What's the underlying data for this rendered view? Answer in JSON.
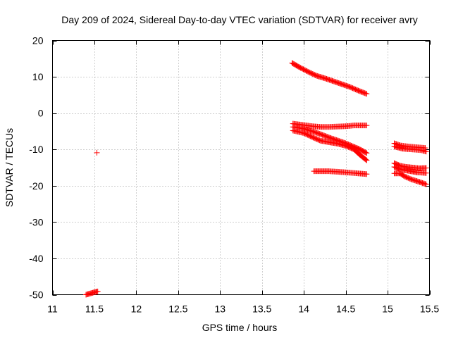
{
  "chart_data": {
    "type": "scatter",
    "title": "Day 209 of 2024, Sidereal Day-to-day VTEC variation (SDTVAR) for receiver avry",
    "xlabel": "GPS time / hours",
    "ylabel": "SDTVAR / TECUs",
    "xlim": [
      11,
      15.5
    ],
    "ylim": [
      -50,
      20
    ],
    "x_ticks": [
      11,
      11.5,
      12,
      12.5,
      13,
      13.5,
      14,
      14.5,
      15,
      15.5
    ],
    "x_tick_labels": [
      "11",
      "11.5",
      "12",
      "12.5",
      "13",
      "13.5",
      "14",
      "14.5",
      "15",
      "15.5"
    ],
    "y_ticks": [
      -50,
      -40,
      -30,
      -20,
      -10,
      0,
      10,
      20
    ],
    "y_tick_labels": [
      "-50",
      "-40",
      "-30",
      "-20",
      "-10",
      "0",
      "10",
      "20"
    ],
    "grid": true,
    "marker": "plus",
    "series": [
      {
        "color": "#ff0000",
        "segments": [
          [
            [
              11.4,
              -50.0
            ],
            [
              11.43,
              -49.8
            ],
            [
              11.46,
              -49.6
            ],
            [
              11.49,
              -49.4
            ],
            [
              11.52,
              -49.2
            ],
            [
              11.54,
              -49.1
            ]
          ],
          [
            [
              11.53,
              -10.9
            ]
          ],
          [
            [
              13.86,
              13.8
            ],
            [
              13.95,
              12.6
            ],
            [
              14.05,
              11.4
            ],
            [
              14.15,
              10.3
            ],
            [
              14.25,
              9.6
            ],
            [
              14.35,
              8.8
            ],
            [
              14.45,
              8.0
            ],
            [
              14.55,
              7.2
            ],
            [
              14.65,
              6.2
            ],
            [
              14.75,
              5.3
            ]
          ],
          [
            [
              13.87,
              -2.9
            ],
            [
              14.0,
              -3.3
            ],
            [
              14.1,
              -3.6
            ],
            [
              14.2,
              -3.8
            ],
            [
              14.3,
              -3.8
            ],
            [
              14.4,
              -3.7
            ],
            [
              14.5,
              -3.6
            ],
            [
              14.6,
              -3.4
            ],
            [
              14.75,
              -3.4
            ]
          ],
          [
            [
              13.87,
              -3.8
            ],
            [
              14.0,
              -4.3
            ],
            [
              14.1,
              -5.0
            ],
            [
              14.2,
              -5.8
            ],
            [
              14.3,
              -6.7
            ],
            [
              14.4,
              -7.5
            ],
            [
              14.5,
              -8.3
            ],
            [
              14.6,
              -9.3
            ],
            [
              14.67,
              -10.0
            ],
            [
              14.75,
              -11.0
            ]
          ],
          [
            [
              13.87,
              -4.8
            ],
            [
              14.0,
              -5.5
            ],
            [
              14.1,
              -6.6
            ],
            [
              14.2,
              -7.6
            ],
            [
              14.3,
              -8.0
            ],
            [
              14.4,
              -8.4
            ],
            [
              14.5,
              -9.0
            ],
            [
              14.6,
              -10.0
            ],
            [
              14.67,
              -11.5
            ],
            [
              14.75,
              -13.0
            ]
          ],
          [
            [
              14.12,
              -16.0
            ],
            [
              14.3,
              -16.0
            ],
            [
              14.5,
              -16.3
            ],
            [
              14.65,
              -16.6
            ],
            [
              14.75,
              -16.8
            ]
          ],
          [
            [
              15.08,
              -8.3
            ],
            [
              15.15,
              -8.9
            ],
            [
              15.25,
              -9.2
            ],
            [
              15.35,
              -9.4
            ],
            [
              15.45,
              -9.6
            ]
          ],
          [
            [
              15.08,
              -9.2
            ],
            [
              15.18,
              -9.8
            ],
            [
              15.3,
              -10.0
            ],
            [
              15.4,
              -10.2
            ],
            [
              15.46,
              -10.6
            ]
          ],
          [
            [
              15.08,
              -13.8
            ],
            [
              15.15,
              -14.5
            ],
            [
              15.22,
              -14.8
            ],
            [
              15.3,
              -15.0
            ],
            [
              15.38,
              -15.2
            ],
            [
              15.46,
              -15.1
            ]
          ],
          [
            [
              15.08,
              -14.8
            ],
            [
              15.15,
              -15.5
            ],
            [
              15.25,
              -15.9
            ],
            [
              15.35,
              -16.3
            ],
            [
              15.46,
              -16.5
            ]
          ],
          [
            [
              15.08,
              -16.6
            ],
            [
              15.15,
              -16.6
            ],
            [
              15.2,
              -17.4
            ],
            [
              15.28,
              -18.2
            ],
            [
              15.36,
              -18.8
            ],
            [
              15.46,
              -19.6
            ]
          ]
        ]
      }
    ]
  }
}
